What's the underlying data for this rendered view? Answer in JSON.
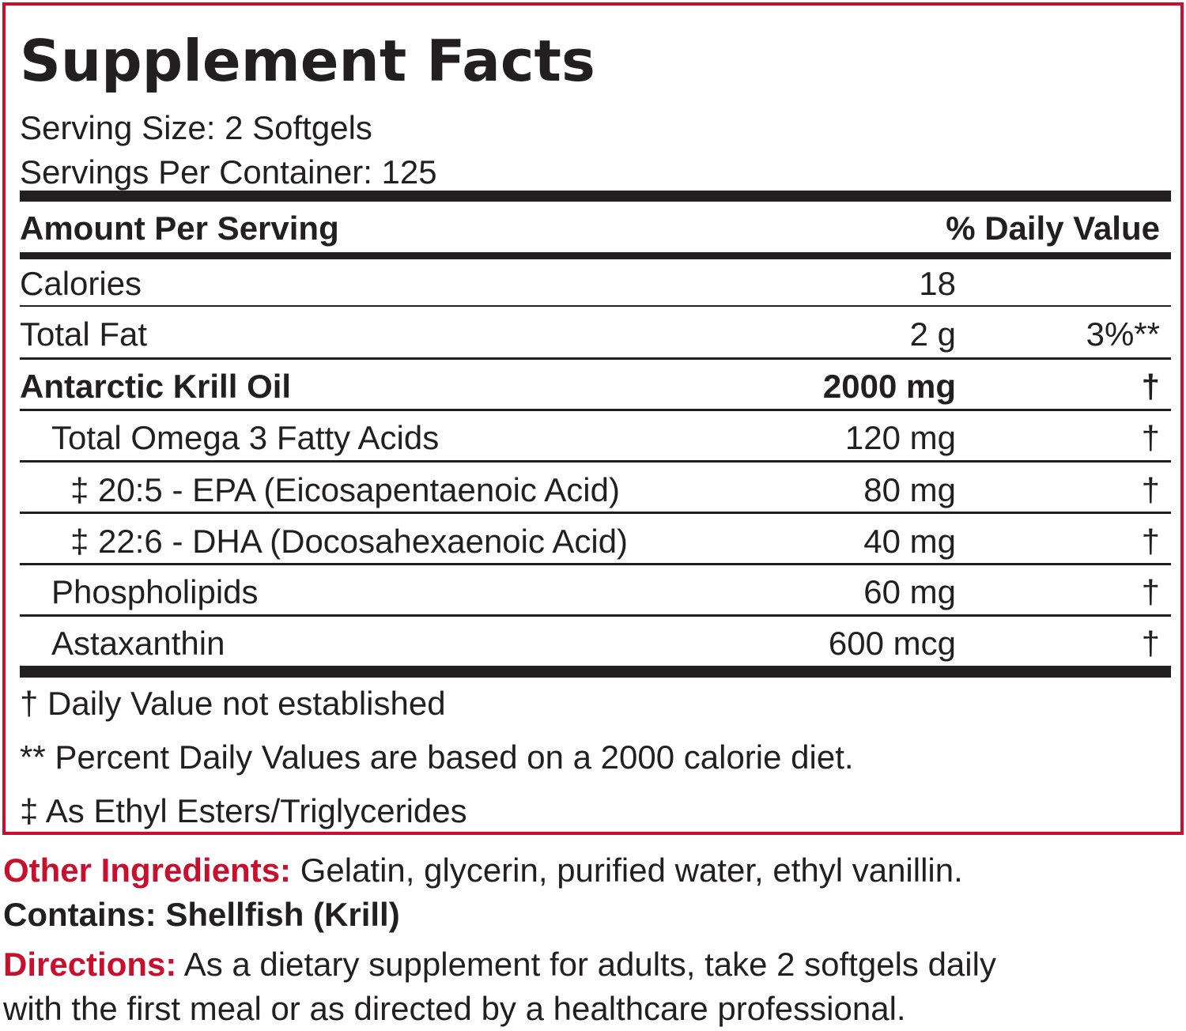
{
  "panel": {
    "title": "Supplement Facts",
    "serving_size": "Serving Size: 2 Softgels",
    "servings_per_container": "Servings Per Container: 125",
    "header_left": "Amount Per Serving",
    "header_right": "% Daily Value",
    "rows": [
      {
        "name": "Calories",
        "amount": "18",
        "dv": ""
      },
      {
        "name": "Total Fat",
        "amount": "2 g",
        "dv": "3%**"
      },
      {
        "name": "Antarctic Krill Oil",
        "amount": "2000 mg",
        "dv": "†"
      },
      {
        "name": "Total Omega 3 Fatty Acids",
        "amount": "120 mg",
        "dv": "†"
      },
      {
        "name": "‡ 20:5 - EPA (Eicosapentaenoic Acid)",
        "amount": "80 mg",
        "dv": "†"
      },
      {
        "name": "‡ 22:6 - DHA (Docosahexaenoic Acid)",
        "amount": "40 mg",
        "dv": "†"
      },
      {
        "name": "Phospholipids",
        "amount": "60 mg",
        "dv": "†"
      },
      {
        "name": "Astaxanthin",
        "amount": "600 mcg",
        "dv": "†"
      }
    ],
    "footnotes": [
      "† Daily Value not established",
      "** Percent Daily Values are based on a 2000 calorie diet.",
      "‡ As Ethyl Esters/Triglycerides"
    ]
  },
  "other_ingredients": {
    "label": "Other Ingredients:",
    "text": " Gelatin, glycerin, purified water, ethyl vanillin."
  },
  "contains": "Contains: Shellfish (Krill)",
  "directions": {
    "label": "Directions:",
    "text_line1": " As a dietary supplement for adults, take 2 softgels daily",
    "text_line2": "with the first meal or as directed by a healthcare professional."
  },
  "colors": {
    "accent_red": "#c8102e",
    "text": "#231f20"
  }
}
